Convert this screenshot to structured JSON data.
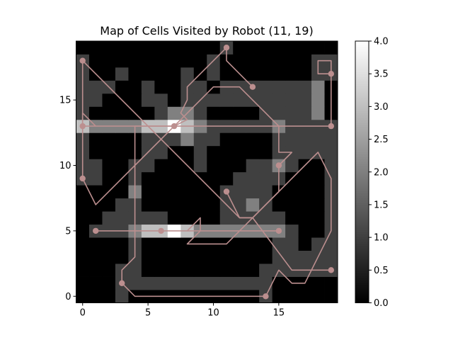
{
  "chart_data": {
    "type": "heatmap",
    "title": "Map of Cells Visited by Robot (11, 19)",
    "xlabel": "",
    "ylabel": "",
    "grid_size": [
      20,
      20
    ],
    "x_ticks": [
      "0",
      "5",
      "10",
      "15"
    ],
    "y_ticks": [
      "0",
      "5",
      "10",
      "15"
    ],
    "xlim": [
      -0.5,
      19.5
    ],
    "ylim": [
      -0.5,
      19.5
    ],
    "origin": "bottom-left",
    "colormap": "gray",
    "colorbar": {
      "min": 0.0,
      "max": 4.0,
      "ticks": [
        "0.0",
        "0.5",
        "1.0",
        "1.5",
        "2.0",
        "2.5",
        "3.0",
        "3.5",
        "4.0"
      ]
    },
    "path_color": "#bc8f8f",
    "grid": false,
    "visit_counts": [
      [
        0,
        0,
        0,
        1,
        0,
        0,
        0,
        0,
        0,
        0,
        0,
        0,
        0,
        0,
        1,
        0,
        0,
        0,
        0,
        0
      ],
      [
        0,
        0,
        0,
        1,
        1,
        1,
        1,
        1,
        1,
        1,
        1,
        1,
        1,
        1,
        1,
        0,
        0,
        0,
        0,
        0
      ],
      [
        0,
        0,
        0,
        1,
        1,
        0,
        0,
        0,
        0,
        0,
        0,
        0,
        0,
        0,
        1,
        1,
        1,
        1,
        1,
        1
      ],
      [
        0,
        0,
        0,
        0,
        1,
        0,
        0,
        0,
        0,
        0,
        0,
        0,
        0,
        0,
        0,
        1,
        1,
        1,
        1,
        1
      ],
      [
        0,
        0,
        0,
        0,
        1,
        0,
        0,
        0,
        0,
        0,
        0,
        0,
        0,
        0,
        0,
        1,
        1,
        0,
        1,
        1
      ],
      [
        0,
        1,
        1,
        1,
        2,
        3,
        3,
        4,
        3,
        2,
        2,
        2,
        2,
        2,
        2,
        2,
        1,
        0,
        0,
        1
      ],
      [
        0,
        0,
        1,
        1,
        1,
        1,
        1,
        0,
        0,
        0,
        0,
        1,
        1,
        1,
        1,
        1,
        0,
        0,
        0,
        1
      ],
      [
        0,
        0,
        0,
        1,
        1,
        0,
        0,
        0,
        0,
        0,
        0,
        1,
        1,
        2,
        1,
        0,
        0,
        0,
        0,
        1
      ],
      [
        0,
        0,
        0,
        0,
        2,
        0,
        0,
        0,
        0,
        0,
        0,
        1,
        1,
        1,
        1,
        0,
        0,
        0,
        0,
        1
      ],
      [
        1,
        1,
        0,
        0,
        1,
        0,
        0,
        0,
        0,
        0,
        0,
        0,
        1,
        1,
        1,
        1,
        0,
        0,
        0,
        1
      ],
      [
        1,
        1,
        0,
        0,
        1,
        1,
        0,
        0,
        0,
        1,
        0,
        0,
        0,
        1,
        1,
        2,
        1,
        0,
        0,
        1
      ],
      [
        1,
        0,
        0,
        0,
        0,
        1,
        1,
        0,
        0,
        1,
        0,
        0,
        0,
        0,
        0,
        1,
        1,
        1,
        1,
        1
      ],
      [
        1,
        0,
        0,
        0,
        0,
        1,
        1,
        1,
        2,
        1,
        1,
        0,
        0,
        0,
        0,
        1,
        1,
        1,
        1,
        1
      ],
      [
        3,
        2,
        2,
        2,
        2,
        3,
        3,
        4,
        3,
        2,
        1,
        1,
        1,
        1,
        1,
        2,
        1,
        1,
        1,
        1
      ],
      [
        1,
        0,
        0,
        0,
        0,
        0,
        1,
        2,
        2,
        1,
        0,
        0,
        0,
        0,
        1,
        1,
        1,
        1,
        2,
        0
      ],
      [
        1,
        1,
        0,
        0,
        0,
        1,
        1,
        0,
        1,
        1,
        1,
        1,
        1,
        1,
        1,
        1,
        1,
        1,
        2,
        0
      ],
      [
        1,
        1,
        1,
        0,
        0,
        1,
        0,
        0,
        1,
        1,
        0,
        1,
        1,
        1,
        1,
        1,
        1,
        1,
        2,
        0
      ],
      [
        1,
        0,
        0,
        1,
        0,
        0,
        0,
        0,
        1,
        0,
        1,
        0,
        0,
        0,
        0,
        0,
        0,
        0,
        1,
        1
      ],
      [
        1,
        0,
        0,
        0,
        0,
        0,
        0,
        0,
        0,
        0,
        1,
        0,
        0,
        0,
        0,
        0,
        0,
        0,
        1,
        1
      ],
      [
        0,
        0,
        0,
        0,
        0,
        0,
        0,
        0,
        0,
        0,
        0,
        1,
        0,
        0,
        0,
        0,
        0,
        0,
        0,
        0
      ]
    ],
    "path_segments": [
      [
        [
          11,
          19
        ],
        [
          8,
          16
        ],
        [
          8,
          15
        ],
        [
          7.5,
          14
        ],
        [
          8,
          13.5
        ],
        [
          7,
          13
        ],
        [
          4,
          10
        ],
        [
          1,
          7
        ],
        [
          0,
          9
        ],
        [
          0,
          18
        ],
        [
          1,
          17
        ],
        [
          5,
          13
        ],
        [
          12,
          6
        ],
        [
          13,
          6
        ],
        [
          16,
          2
        ],
        [
          19,
          2
        ]
      ],
      [
        [
          19,
          17
        ],
        [
          18,
          17
        ],
        [
          18,
          18
        ],
        [
          19,
          18
        ],
        [
          19,
          13
        ],
        [
          0,
          13
        ],
        [
          0,
          14
        ],
        [
          1,
          13
        ],
        [
          15,
          13
        ],
        [
          15,
          11
        ],
        [
          16,
          11
        ],
        [
          15,
          10
        ],
        [
          15,
          8
        ],
        [
          14,
          7
        ],
        [
          13,
          6
        ],
        [
          12,
          6
        ],
        [
          11,
          8
        ]
      ],
      [
        [
          6,
          5
        ],
        [
          1,
          5
        ],
        [
          9,
          5
        ],
        [
          9,
          6
        ],
        [
          8,
          5
        ],
        [
          13,
          5
        ],
        [
          15,
          5
        ],
        [
          12,
          5
        ],
        [
          9,
          5
        ],
        [
          8,
          4
        ],
        [
          11,
          4
        ],
        [
          15,
          8
        ],
        [
          16,
          9
        ],
        [
          18,
          11
        ],
        [
          19,
          9
        ],
        [
          19,
          5
        ],
        [
          18,
          3
        ],
        [
          17,
          1
        ],
        [
          16,
          1
        ],
        [
          15,
          2
        ],
        [
          14,
          0
        ]
      ],
      [
        [
          14,
          0
        ],
        [
          4,
          0
        ],
        [
          3,
          1
        ],
        [
          3,
          2
        ],
        [
          4,
          3
        ],
        [
          4,
          13
        ],
        [
          7,
          13
        ],
        [
          10,
          16
        ],
        [
          11,
          16
        ],
        [
          12,
          16
        ],
        [
          14,
          14
        ],
        [
          15,
          13
        ]
      ],
      [
        [
          13,
          16
        ],
        [
          12,
          17
        ],
        [
          11,
          18
        ],
        [
          11,
          19
        ]
      ]
    ],
    "path_markers": [
      [
        11,
        19
      ],
      [
        0,
        18
      ],
      [
        19,
        17
      ],
      [
        13,
        16
      ],
      [
        0,
        13
      ],
      [
        7,
        13
      ],
      [
        19,
        13
      ],
      [
        0,
        9
      ],
      [
        15,
        10
      ],
      [
        11,
        8
      ],
      [
        1,
        5
      ],
      [
        6,
        5
      ],
      [
        15,
        5
      ],
      [
        19,
        2
      ],
      [
        3,
        1
      ],
      [
        14,
        0
      ]
    ]
  }
}
